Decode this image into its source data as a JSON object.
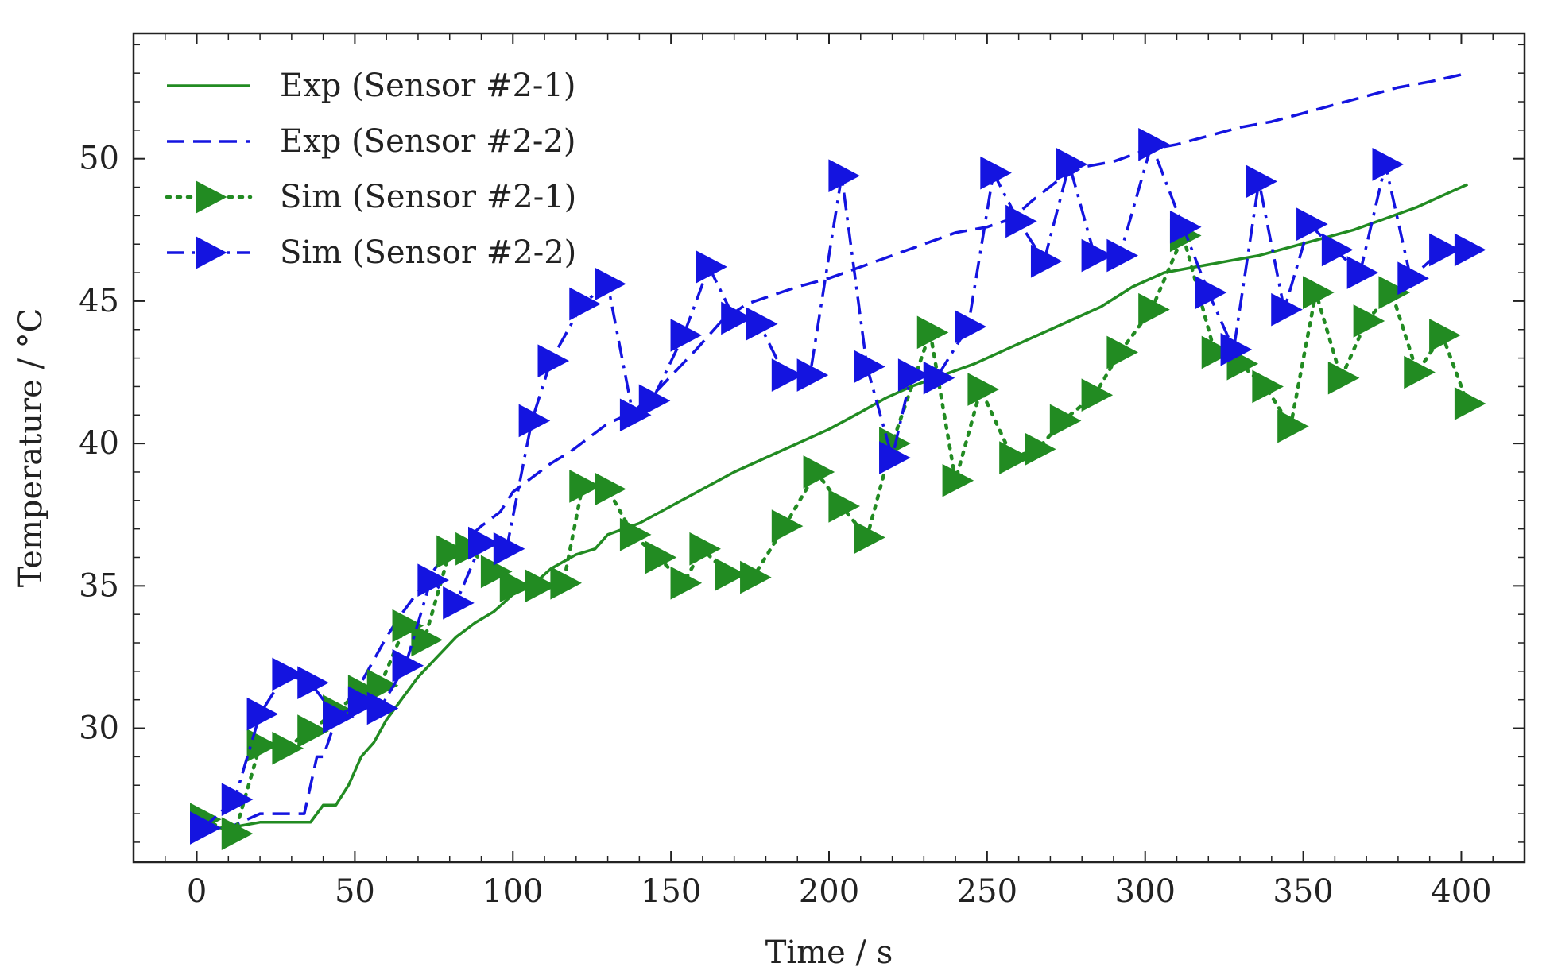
{
  "chart_data": {
    "type": "line",
    "title": "",
    "xlabel": "Time / s",
    "ylabel": "Temperature / °C",
    "xlim": [
      -20,
      420
    ],
    "ylim": [
      25.3,
      54.4
    ],
    "xticks": [
      0,
      50,
      100,
      150,
      200,
      250,
      300,
      350,
      400
    ],
    "yticks": [
      30,
      35,
      40,
      45,
      50
    ],
    "grid": false,
    "legend_position": "top-left",
    "series": [
      {
        "name": "Exp (Sensor #2-1)",
        "color": "#228B22",
        "style": "solid",
        "marker": "none",
        "x": [
          0,
          10,
          20,
          30,
          36,
          40,
          44,
          48,
          52,
          56,
          60,
          64,
          70,
          76,
          82,
          88,
          94,
          100,
          106,
          112,
          120,
          126,
          130,
          140,
          150,
          160,
          170,
          180,
          190,
          200,
          210,
          218,
          226,
          236,
          246,
          256,
          266,
          276,
          286,
          296,
          306,
          316,
          326,
          336,
          346,
          356,
          366,
          376,
          386,
          396,
          402
        ],
        "y": [
          26.5,
          26.5,
          26.7,
          26.7,
          26.7,
          27.3,
          27.3,
          28.0,
          29.0,
          29.5,
          30.3,
          30.9,
          31.8,
          32.5,
          33.2,
          33.7,
          34.1,
          34.7,
          35.0,
          35.6,
          36.1,
          36.3,
          36.8,
          37.2,
          37.8,
          38.4,
          39.0,
          39.5,
          40.0,
          40.5,
          41.1,
          41.6,
          42.0,
          42.4,
          42.8,
          43.3,
          43.8,
          44.3,
          44.8,
          45.5,
          46.0,
          46.2,
          46.4,
          46.6,
          46.9,
          47.2,
          47.5,
          47.9,
          48.3,
          48.8,
          49.1
        ]
      },
      {
        "name": "Exp (Sensor #2-2)",
        "color": "#1414E0",
        "style": "dashed",
        "marker": "none",
        "x": [
          0,
          10,
          20,
          34,
          38,
          40,
          44,
          48,
          52,
          56,
          60,
          64,
          68,
          72,
          76,
          80,
          86,
          90,
          96,
          100,
          106,
          112,
          118,
          124,
          130,
          138,
          146,
          152,
          158,
          166,
          174,
          182,
          190,
          200,
          210,
          220,
          230,
          240,
          250,
          258,
          264,
          272,
          280,
          290,
          300,
          310,
          320,
          330,
          340,
          350,
          360,
          370,
          380,
          390,
          402
        ],
        "y": [
          26.5,
          26.5,
          27.0,
          27.0,
          29.0,
          29.0,
          30.3,
          31.0,
          31.6,
          32.4,
          33.2,
          33.9,
          34.5,
          35.1,
          35.7,
          36.2,
          36.7,
          37.1,
          37.6,
          38.3,
          38.8,
          39.3,
          39.7,
          40.2,
          40.7,
          41.1,
          41.9,
          42.6,
          43.3,
          44.3,
          44.9,
          45.2,
          45.5,
          45.8,
          46.2,
          46.6,
          47.0,
          47.4,
          47.6,
          47.9,
          48.5,
          49.2,
          49.7,
          49.9,
          50.3,
          50.5,
          50.8,
          51.1,
          51.3,
          51.6,
          51.9,
          52.2,
          52.5,
          52.7,
          53.0
        ]
      },
      {
        "name": "Sim (Sensor #2-1)",
        "color": "#228B22",
        "style": "dotted",
        "marker": "triangle-right",
        "x": [
          2,
          12,
          20,
          28,
          36,
          44,
          52,
          58,
          66,
          72,
          80,
          86,
          94,
          100,
          108,
          116,
          122,
          130,
          138,
          146,
          154,
          160,
          168,
          176,
          186,
          196,
          204,
          212,
          220,
          232,
          240,
          248,
          258,
          266,
          274,
          284,
          292,
          302,
          312,
          322,
          330,
          338,
          346,
          354,
          362,
          370,
          378,
          386,
          394,
          402
        ],
        "y": [
          26.8,
          26.3,
          29.4,
          29.3,
          29.9,
          30.6,
          31.3,
          31.5,
          33.6,
          33.1,
          36.2,
          36.3,
          35.5,
          35.0,
          35.0,
          35.1,
          38.5,
          38.4,
          36.8,
          36.0,
          35.1,
          36.3,
          35.4,
          35.3,
          37.1,
          39.0,
          37.8,
          36.7,
          40.0,
          43.9,
          38.7,
          41.9,
          39.5,
          39.8,
          40.8,
          41.7,
          43.2,
          44.7,
          47.3,
          43.2,
          42.8,
          42.0,
          40.6,
          45.3,
          42.3,
          44.3,
          45.3,
          42.5,
          43.8,
          41.4
        ]
      },
      {
        "name": "Sim (Sensor #2-2)",
        "color": "#1414E0",
        "style": "dashdot",
        "marker": "triangle-right",
        "x": [
          2,
          12,
          20,
          28,
          36,
          44,
          52,
          58,
          66,
          74,
          82,
          90,
          98,
          106,
          112,
          122,
          130,
          138,
          144,
          154,
          162,
          170,
          178,
          186,
          194,
          204,
          212,
          220,
          226,
          234,
          244,
          252,
          260,
          268,
          276,
          284,
          292,
          302,
          312,
          320,
          328,
          336,
          344,
          352,
          360,
          368,
          376,
          384,
          394,
          402
        ],
        "y": [
          26.5,
          27.5,
          30.5,
          31.9,
          31.6,
          30.4,
          30.9,
          30.7,
          32.2,
          35.2,
          34.4,
          36.5,
          36.3,
          40.8,
          42.9,
          44.9,
          45.6,
          41.0,
          41.5,
          43.8,
          46.2,
          44.4,
          44.2,
          42.4,
          42.4,
          49.4,
          42.7,
          39.5,
          42.4,
          42.3,
          44.1,
          49.5,
          47.8,
          46.4,
          49.8,
          46.6,
          46.6,
          50.5,
          47.6,
          45.3,
          43.3,
          49.2,
          44.7,
          47.7,
          46.8,
          46.0,
          49.8,
          45.8,
          46.8,
          46.8
        ]
      }
    ]
  }
}
